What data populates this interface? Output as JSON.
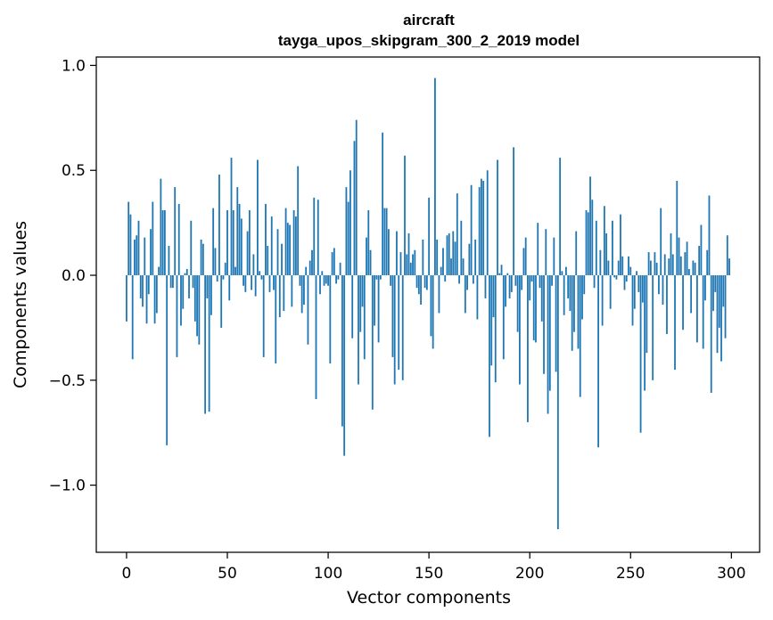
{
  "chart_data": {
    "type": "bar",
    "title": "aircraft",
    "subtitle": "tayga_upos_skipgram_300_2_2019 model",
    "xlabel": "Vector components",
    "ylabel": "Components values",
    "xlim": [
      -15,
      314
    ],
    "ylim": [
      -1.32,
      1.04
    ],
    "xticks": [
      0,
      50,
      100,
      150,
      200,
      250,
      300
    ],
    "xtick_labels": [
      "0",
      "50",
      "100",
      "150",
      "200",
      "250",
      "300"
    ],
    "yticks": [
      -1.0,
      -0.5,
      0.0,
      0.5,
      1.0
    ],
    "ytick_labels": [
      "−1.0",
      "−0.5",
      "0.0",
      "0.5",
      "1.0"
    ],
    "bar_color": "#1f77b4",
    "grid": false,
    "x": [
      0,
      1,
      2,
      3,
      4,
      5,
      6,
      7,
      8,
      9,
      10,
      11,
      12,
      13,
      14,
      15,
      16,
      17,
      18,
      19,
      20,
      21,
      22,
      23,
      24,
      25,
      26,
      27,
      28,
      29,
      30,
      31,
      32,
      33,
      34,
      35,
      36,
      37,
      38,
      39,
      40,
      41,
      42,
      43,
      44,
      45,
      46,
      47,
      48,
      49,
      50,
      51,
      52,
      53,
      54,
      55,
      56,
      57,
      58,
      59,
      60,
      61,
      62,
      63,
      64,
      65,
      66,
      67,
      68,
      69,
      70,
      71,
      72,
      73,
      74,
      75,
      76,
      77,
      78,
      79,
      80,
      81,
      82,
      83,
      84,
      85,
      86,
      87,
      88,
      89,
      90,
      91,
      92,
      93,
      94,
      95,
      96,
      97,
      98,
      99,
      100,
      101,
      102,
      103,
      104,
      105,
      106,
      107,
      108,
      109,
      110,
      111,
      112,
      113,
      114,
      115,
      116,
      117,
      118,
      119,
      120,
      121,
      122,
      123,
      124,
      125,
      126,
      127,
      128,
      129,
      130,
      131,
      132,
      133,
      134,
      135,
      136,
      137,
      138,
      139,
      140,
      141,
      142,
      143,
      144,
      145,
      146,
      147,
      148,
      149,
      150,
      151,
      152,
      153,
      154,
      155,
      156,
      157,
      158,
      159,
      160,
      161,
      162,
      163,
      164,
      165,
      166,
      167,
      168,
      169,
      170,
      171,
      172,
      173,
      174,
      175,
      176,
      177,
      178,
      179,
      180,
      181,
      182,
      183,
      184,
      185,
      186,
      187,
      188,
      189,
      190,
      191,
      192,
      193,
      194,
      195,
      196,
      197,
      198,
      199,
      200,
      201,
      202,
      203,
      204,
      205,
      206,
      207,
      208,
      209,
      210,
      211,
      212,
      213,
      214,
      215,
      216,
      217,
      218,
      219,
      220,
      221,
      222,
      223,
      224,
      225,
      226,
      227,
      228,
      229,
      230,
      231,
      232,
      233,
      234,
      235,
      236,
      237,
      238,
      239,
      240,
      241,
      242,
      243,
      244,
      245,
      246,
      247,
      248,
      249,
      250,
      251,
      252,
      253,
      254,
      255,
      256,
      257,
      258,
      259,
      260,
      261,
      262,
      263,
      264,
      265,
      266,
      267,
      268,
      269,
      270,
      271,
      272,
      273,
      274,
      275,
      276,
      277,
      278,
      279,
      280,
      281,
      282,
      283,
      284,
      285,
      286,
      287,
      288,
      289,
      290,
      291,
      292,
      293,
      294,
      295,
      296,
      297,
      298,
      299
    ],
    "values": [
      -0.22,
      0.35,
      0.29,
      -0.4,
      0.17,
      0.19,
      0.26,
      -0.11,
      -0.15,
      0.18,
      -0.23,
      -0.09,
      0.22,
      0.35,
      -0.23,
      -0.18,
      0.04,
      0.46,
      0.31,
      0.31,
      -0.81,
      0.14,
      -0.06,
      -0.06,
      0.42,
      -0.39,
      0.34,
      -0.24,
      -0.16,
      0.01,
      0.03,
      -0.11,
      0.26,
      -0.06,
      -0.22,
      -0.29,
      -0.33,
      0.17,
      0.15,
      -0.66,
      -0.11,
      -0.65,
      -0.19,
      0.32,
      0.13,
      -0.03,
      0.48,
      -0.25,
      -0.02,
      0.06,
      0.31,
      -0.12,
      0.56,
      0.31,
      0.04,
      0.42,
      0.34,
      0.27,
      -0.05,
      -0.08,
      0.21,
      0.31,
      -0.07,
      0.1,
      -0.1,
      0.55,
      0.02,
      -0.02,
      -0.39,
      0.34,
      0.14,
      -0.08,
      0.28,
      -0.07,
      -0.42,
      0.22,
      -0.2,
      0.15,
      -0.17,
      0.32,
      0.25,
      0.24,
      -0.15,
      0.31,
      0.28,
      0.52,
      -0.05,
      -0.18,
      -0.14,
      0.04,
      -0.33,
      0.07,
      0.12,
      0.37,
      -0.59,
      0.36,
      -0.09,
      0.02,
      -0.05,
      -0.04,
      -0.05,
      -0.42,
      0.11,
      0.13,
      -0.04,
      -0.02,
      0.06,
      -0.72,
      -0.86,
      0.42,
      0.35,
      0.5,
      -0.3,
      0.64,
      0.74,
      -0.52,
      -0.27,
      -0.15,
      -0.4,
      0.18,
      0.31,
      0.12,
      -0.64,
      -0.24,
      -0.02,
      -0.32,
      -0.02,
      0.68,
      0.32,
      0.32,
      0.22,
      -0.05,
      -0.39,
      -0.52,
      0.21,
      -0.45,
      0.11,
      -0.5,
      0.57,
      0.1,
      0.2,
      0.06,
      0.1,
      0.12,
      -0.06,
      -0.09,
      -0.14,
      0.17,
      -0.06,
      -0.07,
      0.37,
      -0.29,
      -0.35,
      0.94,
      0.17,
      -0.18,
      0.04,
      0.13,
      -0.03,
      0.19,
      0.2,
      0.08,
      0.21,
      0.16,
      0.39,
      -0.04,
      0.26,
      0.08,
      -0.18,
      -0.07,
      0.15,
      0.43,
      -0.04,
      0.17,
      -0.21,
      0.42,
      0.46,
      0.45,
      -0.11,
      0.5,
      -0.77,
      -0.43,
      -0.2,
      -0.51,
      0.55,
      0.01,
      0.05,
      -0.4,
      -0.15,
      0.01,
      -0.11,
      -0.08,
      0.61,
      -0.05,
      -0.27,
      -0.52,
      -0.07,
      0.13,
      0.18,
      -0.7,
      -0.12,
      -0.03,
      -0.31,
      -0.32,
      0.25,
      -0.06,
      -0.22,
      -0.47,
      0.22,
      -0.66,
      -0.55,
      -0.05,
      0.18,
      -0.46,
      -1.21,
      0.56,
      0.02,
      -0.19,
      0.04,
      -0.11,
      -0.17,
      -0.36,
      -0.27,
      0.21,
      -0.35,
      -0.58,
      -0.21,
      -0.09,
      0.31,
      0.3,
      0.47,
      0.36,
      -0.06,
      0.26,
      -0.82,
      0.12,
      -0.24,
      0.33,
      0.2,
      0.07,
      -0.16,
      0.26,
      -0.01,
      -0.02,
      0.07,
      0.29,
      0.09,
      -0.07,
      -0.03,
      0.09,
      0.04,
      -0.24,
      -0.16,
      0.02,
      -0.08,
      -0.75,
      -0.13,
      -0.55,
      -0.37,
      0.11,
      0.07,
      -0.5,
      0.11,
      0.06,
      -0.09,
      0.32,
      -0.14,
      0.1,
      -0.28,
      0.08,
      0.2,
      0.1,
      -0.45,
      0.45,
      0.18,
      0.09,
      -0.26,
      0.11,
      0.16,
      0.03,
      -0.18,
      0.07,
      0.06,
      -0.32,
      0.14,
      0.24,
      -0.35,
      -0.12,
      0.12,
      0.38,
      -0.56,
      -0.17,
      -0.08,
      -0.37,
      -0.25,
      -0.41,
      -0.15,
      -0.3,
      0.19,
      0.08
    ]
  }
}
